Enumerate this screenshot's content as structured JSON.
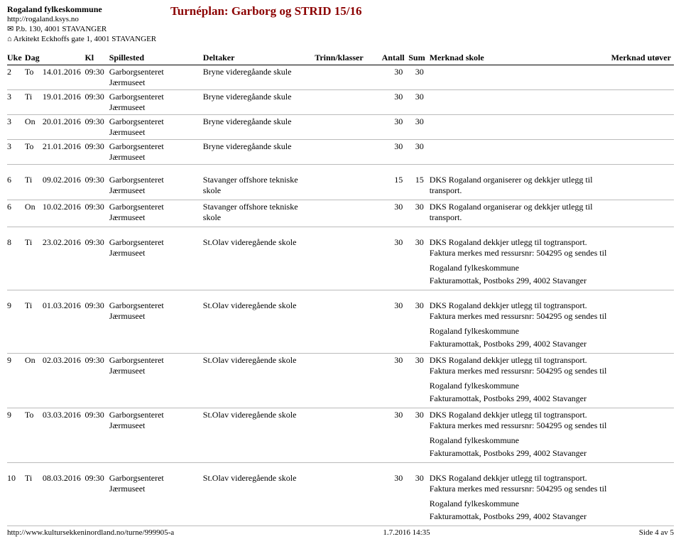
{
  "header": {
    "org": "Rogaland fylkeskommune",
    "url": "http://rogaland.ksys.no",
    "pb": "✉ P.b. 130, 4001 STAVANGER",
    "addr": "⌂ Arkitekt Eckhoffs gate 1, 4001 STAVANGER",
    "title": "Turnéplan: Garborg og STRID 15/16"
  },
  "columns": {
    "uke": "Uke",
    "dag": "Dag",
    "dato": "",
    "kl": "Kl",
    "spillested": "Spillested",
    "deltaker": "Deltaker",
    "trinn": "Trinn/klasser",
    "antall": "Antall",
    "sum": "Sum",
    "merknadSkole": "Merknad skole",
    "merknadUtover": "Merknad utøver"
  },
  "rows": [
    {
      "uke": "2",
      "dag": "To",
      "dato": "14.01.2016",
      "kl": "09:30",
      "sted": "Garborgsenteret Jærmuseet",
      "deltaker": "Bryne videregåande skule",
      "antall": "30",
      "sum": "30",
      "merknad": null,
      "gap": false
    },
    {
      "uke": "3",
      "dag": "Ti",
      "dato": "19.01.2016",
      "kl": "09:30",
      "sted": "Garborgsenteret Jærmuseet",
      "deltaker": "Bryne videregåande skule",
      "antall": "30",
      "sum": "30",
      "merknad": null,
      "gap": false
    },
    {
      "uke": "3",
      "dag": "On",
      "dato": "20.01.2016",
      "kl": "09:30",
      "sted": "Garborgsenteret Jærmuseet",
      "deltaker": "Bryne videregåande skule",
      "antall": "30",
      "sum": "30",
      "merknad": null,
      "gap": false
    },
    {
      "uke": "3",
      "dag": "To",
      "dato": "21.01.2016",
      "kl": "09:30",
      "sted": "Garborgsenteret Jærmuseet",
      "deltaker": "Bryne videregåande skule",
      "antall": "30",
      "sum": "30",
      "merknad": null,
      "gap": false
    },
    {
      "uke": "6",
      "dag": "Ti",
      "dato": "09.02.2016",
      "kl": "09:30",
      "sted": "Garborgsenteret Jærmuseet",
      "deltaker": "Stavanger offshore tekniske skole",
      "antall": "15",
      "sum": "15",
      "merknad": {
        "lines": [
          "DKS Rogaland organiserer og dekkjer utlegg til transport."
        ]
      },
      "gap": true
    },
    {
      "uke": "6",
      "dag": "On",
      "dato": "10.02.2016",
      "kl": "09:30",
      "sted": "Garborgsenteret Jærmuseet",
      "deltaker": "Stavanger offshore tekniske skole",
      "antall": "30",
      "sum": "30",
      "merknad": {
        "lines": [
          "DKS Rogaland organiserar og dekkjer utlegg til transport."
        ]
      },
      "gap": false
    },
    {
      "uke": "8",
      "dag": "Ti",
      "dato": "23.02.2016",
      "kl": "09:30",
      "sted": "Garborgsenteret Jærmuseet",
      "deltaker": "St.Olav videregående skole",
      "antall": "30",
      "sum": "30",
      "merknad": {
        "lines": [
          "DKS Rogaland dekkjer utlegg til togtransport. Faktura merkes med ressursnr: 504295 og sendes til"
        ],
        "sub": [
          "Rogaland fylkeskommune",
          "Fakturamottak, Postboks 299, 4002 Stavanger"
        ]
      },
      "gap": true
    },
    {
      "uke": "9",
      "dag": "Ti",
      "dato": "01.03.2016",
      "kl": "09:30",
      "sted": "Garborgsenteret Jærmuseet",
      "deltaker": "St.Olav videregående skole",
      "antall": "30",
      "sum": "30",
      "merknad": {
        "lines": [
          "DKS Rogaland dekkjer utlegg til togtransport. Faktura merkes med ressursnr: 504295 og sendes til"
        ],
        "sub": [
          "Rogaland fylkeskommune",
          "Fakturamottak, Postboks 299, 4002 Stavanger"
        ]
      },
      "gap": true
    },
    {
      "uke": "9",
      "dag": "On",
      "dato": "02.03.2016",
      "kl": "09:30",
      "sted": "Garborgsenteret Jærmuseet",
      "deltaker": "St.Olav videregående skole",
      "antall": "30",
      "sum": "30",
      "merknad": {
        "lines": [
          "DKS Rogaland dekkjer utlegg til togtransport. Faktura merkes med ressursnr: 504295 og sendes til"
        ],
        "sub": [
          "Rogaland fylkeskommune",
          "Fakturamottak, Postboks 299, 4002 Stavanger"
        ]
      },
      "gap": false
    },
    {
      "uke": "9",
      "dag": "To",
      "dato": "03.03.2016",
      "kl": "09:30",
      "sted": "Garborgsenteret Jærmuseet",
      "deltaker": "St.Olav videregående skole",
      "antall": "30",
      "sum": "30",
      "merknad": {
        "lines": [
          "DKS Rogaland dekkjer utlegg til togtransport. Faktura merkes med ressursnr: 504295 og sendes til"
        ],
        "sub": [
          "Rogaland fylkeskommune",
          "Fakturamottak, Postboks 299, 4002 Stavanger"
        ]
      },
      "gap": false
    },
    {
      "uke": "10",
      "dag": "Ti",
      "dato": "08.03.2016",
      "kl": "09:30",
      "sted": "Garborgsenteret Jærmuseet",
      "deltaker": "St.Olav videregående skole",
      "antall": "30",
      "sum": "30",
      "merknad": {
        "lines": [
          "DKS Rogaland dekkjer utlegg til togtransport. Faktura merkes med ressursnr: 504295 og sendes til"
        ],
        "sub": [
          "Rogaland fylkeskommune",
          "Fakturamottak, Postboks 299, 4002 Stavanger"
        ]
      },
      "gap": true
    }
  ],
  "footer": {
    "left": "http://www.kultursekkeninordland.no/turne/999905-a",
    "center": "1.7.2016 14:35",
    "right": "Side 4 av 5"
  }
}
